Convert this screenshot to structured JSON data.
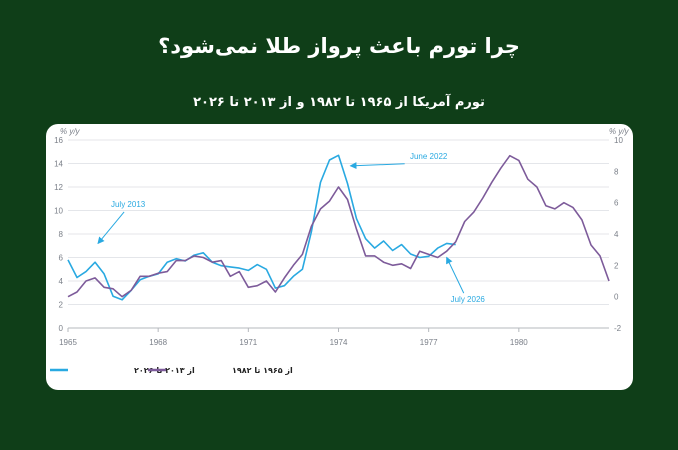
{
  "header": {
    "title": "چرا تورم باعث پرواز طلا نمی‌شود؟",
    "subtitle": "تورم آمریکا از ۱۹۶۵ تا ۱۹۸۲ و از ۲۰۱۳ تا ۲۰۲۶"
  },
  "chart_data": {
    "type": "line",
    "title": "",
    "xlabel": "",
    "ylabel": "% y/y",
    "y2label": "% y/y",
    "x_range": [
      1965,
      1983
    ],
    "x_ticks": [
      "1965",
      "1968",
      "1971",
      "1974",
      "1977",
      "1980"
    ],
    "ylim": [
      0,
      16
    ],
    "yticks": [
      "0",
      "2",
      "4",
      "6",
      "8",
      "10",
      "12",
      "14",
      "16"
    ],
    "y2lim": [
      -2,
      10
    ],
    "y2ticks": [
      "-2",
      "0",
      "2",
      "4",
      "6",
      "8",
      "10"
    ],
    "grid": true,
    "legend_position": "bottom-left",
    "series": [
      {
        "name": "از ۲۰۱۳ تا ۲۰۲۶",
        "axis": "left",
        "color": "#29a9e1",
        "x": [
          1965.0,
          1965.3,
          1965.6,
          1965.9,
          1966.2,
          1966.5,
          1966.8,
          1967.1,
          1967.4,
          1967.7,
          1968.0,
          1968.3,
          1968.6,
          1968.9,
          1969.2,
          1969.5,
          1969.8,
          1970.1,
          1970.4,
          1970.7,
          1971.0,
          1971.3,
          1971.6,
          1971.9,
          1972.2,
          1972.5,
          1972.8,
          1973.1,
          1973.4,
          1973.7,
          1974.0,
          1974.3,
          1974.6,
          1974.9,
          1975.2,
          1975.5,
          1975.8,
          1976.1,
          1976.4,
          1976.7,
          1977.0,
          1977.3,
          1977.6,
          1977.9
        ],
        "values": [
          5.8,
          4.3,
          4.8,
          5.6,
          4.6,
          2.7,
          2.4,
          3.2,
          4.1,
          4.4,
          4.6,
          5.6,
          5.9,
          5.7,
          6.2,
          6.4,
          5.6,
          5.3,
          5.2,
          5.1,
          4.9,
          5.4,
          5.0,
          3.4,
          3.6,
          4.4,
          5.0,
          8.2,
          12.4,
          14.3,
          14.7,
          12.3,
          9.3,
          7.6,
          6.8,
          7.4,
          6.6,
          7.1,
          6.3,
          6.0,
          6.1,
          6.8,
          7.2,
          7.1
        ]
      },
      {
        "name": "از ۱۹۶۵ تا ۱۹۸۲",
        "axis": "right",
        "color": "#7d5b9a",
        "x": [
          1965.0,
          1965.3,
          1965.6,
          1965.9,
          1966.2,
          1966.5,
          1966.8,
          1967.1,
          1967.4,
          1967.7,
          1968.0,
          1968.3,
          1968.6,
          1968.9,
          1969.2,
          1969.5,
          1969.8,
          1970.1,
          1970.4,
          1970.7,
          1971.0,
          1971.3,
          1971.6,
          1971.9,
          1972.2,
          1972.5,
          1972.8,
          1973.1,
          1973.4,
          1973.7,
          1974.0,
          1974.3,
          1974.6,
          1974.9,
          1975.2,
          1975.5,
          1975.8,
          1976.1,
          1976.4,
          1976.7,
          1977.0,
          1977.3,
          1977.6,
          1977.9,
          1978.2,
          1978.5,
          1978.8,
          1979.1,
          1979.4,
          1979.7,
          1980.0,
          1980.3,
          1980.6,
          1980.9,
          1981.2,
          1981.5,
          1981.8,
          1982.1,
          1982.4,
          1982.7,
          1983.0
        ],
        "values": [
          0.0,
          0.3,
          1.0,
          1.2,
          0.6,
          0.5,
          0.0,
          0.4,
          1.3,
          1.3,
          1.5,
          1.6,
          2.3,
          2.3,
          2.6,
          2.5,
          2.2,
          2.3,
          1.3,
          1.6,
          0.6,
          0.7,
          1.0,
          0.3,
          1.2,
          2.0,
          2.7,
          4.5,
          5.6,
          6.1,
          7.0,
          6.2,
          4.3,
          2.6,
          2.6,
          2.2,
          2.0,
          2.1,
          1.8,
          2.9,
          2.7,
          2.5,
          2.9,
          3.5,
          4.8,
          5.4,
          6.3,
          7.3,
          8.2,
          9.0,
          8.7,
          7.5,
          7.0,
          5.8,
          5.6,
          6.0,
          5.7,
          4.9,
          3.3,
          2.6,
          1.0
        ]
      }
    ],
    "annotations": [
      {
        "text": "June 2022",
        "x": 1977.0,
        "y": 14.4,
        "arrow_to": [
          1974.4,
          13.8
        ]
      },
      {
        "text": "July 2013",
        "x": 1967.0,
        "y": 10.3,
        "arrow_to": [
          1966.0,
          7.2
        ]
      },
      {
        "text": "July 2026",
        "x": 1978.3,
        "y": 2.2,
        "arrow_to": [
          1977.6,
          6.0
        ]
      }
    ]
  }
}
